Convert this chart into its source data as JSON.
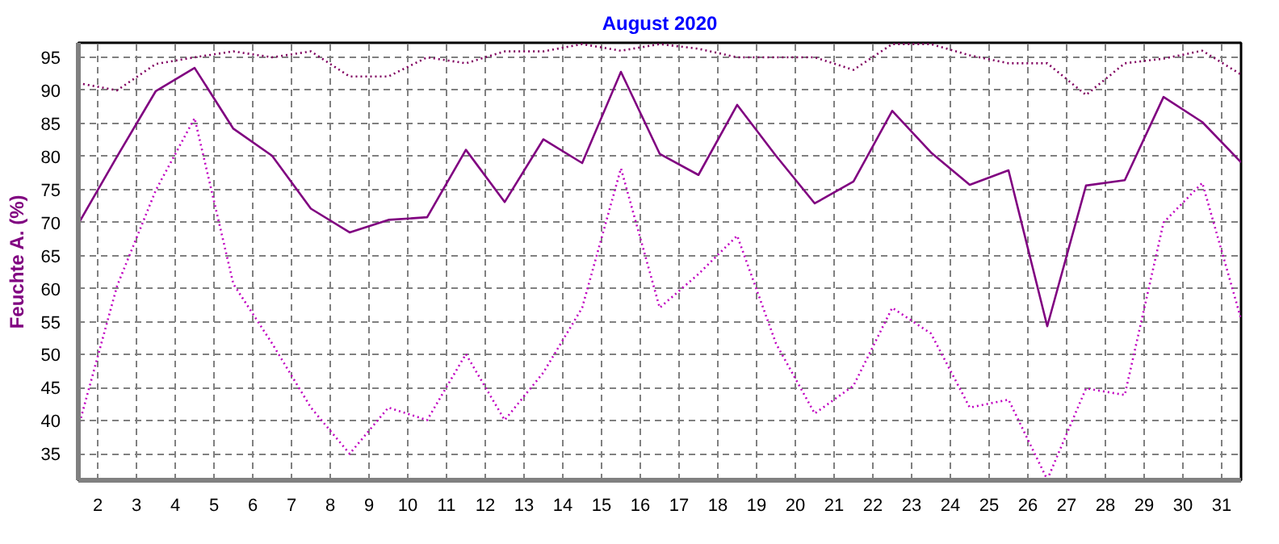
{
  "chart_data": {
    "type": "line",
    "title": "August 2020",
    "ylabel": "Feuchte A. (%)",
    "x": [
      1.5,
      2.5,
      3.5,
      4.5,
      5.5,
      6.5,
      7.5,
      8.5,
      9.5,
      10.5,
      11.5,
      12.5,
      13.5,
      14.5,
      15.5,
      16.5,
      17.5,
      18.5,
      19.5,
      20.5,
      21.5,
      22.5,
      23.5,
      24.5,
      25.5,
      26.5,
      27.5,
      28.5,
      29.5,
      30.5,
      31.5
    ],
    "xlim": [
      1.5,
      31.5
    ],
    "xticks": [
      2,
      3,
      4,
      5,
      6,
      7,
      8,
      9,
      10,
      11,
      12,
      13,
      14,
      15,
      16,
      17,
      18,
      19,
      20,
      21,
      22,
      23,
      24,
      25,
      26,
      27,
      28,
      29,
      30,
      31
    ],
    "ylim": [
      31,
      97.2
    ],
    "yticks": [
      35,
      40,
      45,
      50,
      55,
      60,
      65,
      70,
      75,
      80,
      85,
      90,
      95
    ],
    "grid": true,
    "series": [
      {
        "color": "#800080",
        "line_style": "solid",
        "values": [
          69.8,
          80,
          89.9,
          93.4,
          84.2,
          80.1,
          72.1,
          68.5,
          70.4,
          70.8,
          81,
          73.1,
          82.6,
          79,
          92.8,
          80.4,
          77.2,
          87.8,
          80.1,
          72.9,
          76.2,
          86.9,
          80.6,
          75.7,
          77.9,
          54.3,
          75.6,
          76.4,
          89,
          85.2,
          79.1
        ]
      },
      {
        "color": "#800060",
        "line_style": "dotted",
        "values": [
          91.1,
          90,
          94,
          95,
          95.9,
          95,
          95.9,
          92.1,
          92.1,
          95,
          94.1,
          95.9,
          95.9,
          97,
          96,
          97,
          96.3,
          95,
          95,
          95,
          93.1,
          97,
          97,
          95.3,
          94.1,
          94.1,
          89.3,
          94.1,
          94.8,
          96,
          92.4
        ]
      },
      {
        "color": "#c000c0",
        "line_style": "dotted",
        "values": [
          39,
          60.4,
          74.9,
          85.8,
          60.7,
          51.7,
          42,
          35,
          42,
          40.1,
          50.1,
          40.1,
          47.3,
          57.1,
          78.2,
          57.1,
          62.2,
          68,
          51.7,
          41.1,
          45.3,
          57.1,
          53.2,
          42,
          43.2,
          31.1,
          44.9,
          43.9,
          70,
          76,
          55.4
        ]
      }
    ]
  }
}
